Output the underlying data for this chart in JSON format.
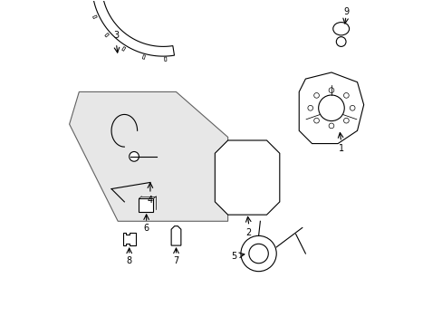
{
  "title": "",
  "background_color": "#ffffff",
  "line_color": "#000000",
  "fill_color": "#d8d8d8",
  "label_color": "#000000",
  "fig_width": 4.89,
  "fig_height": 3.6,
  "dpi": 100
}
